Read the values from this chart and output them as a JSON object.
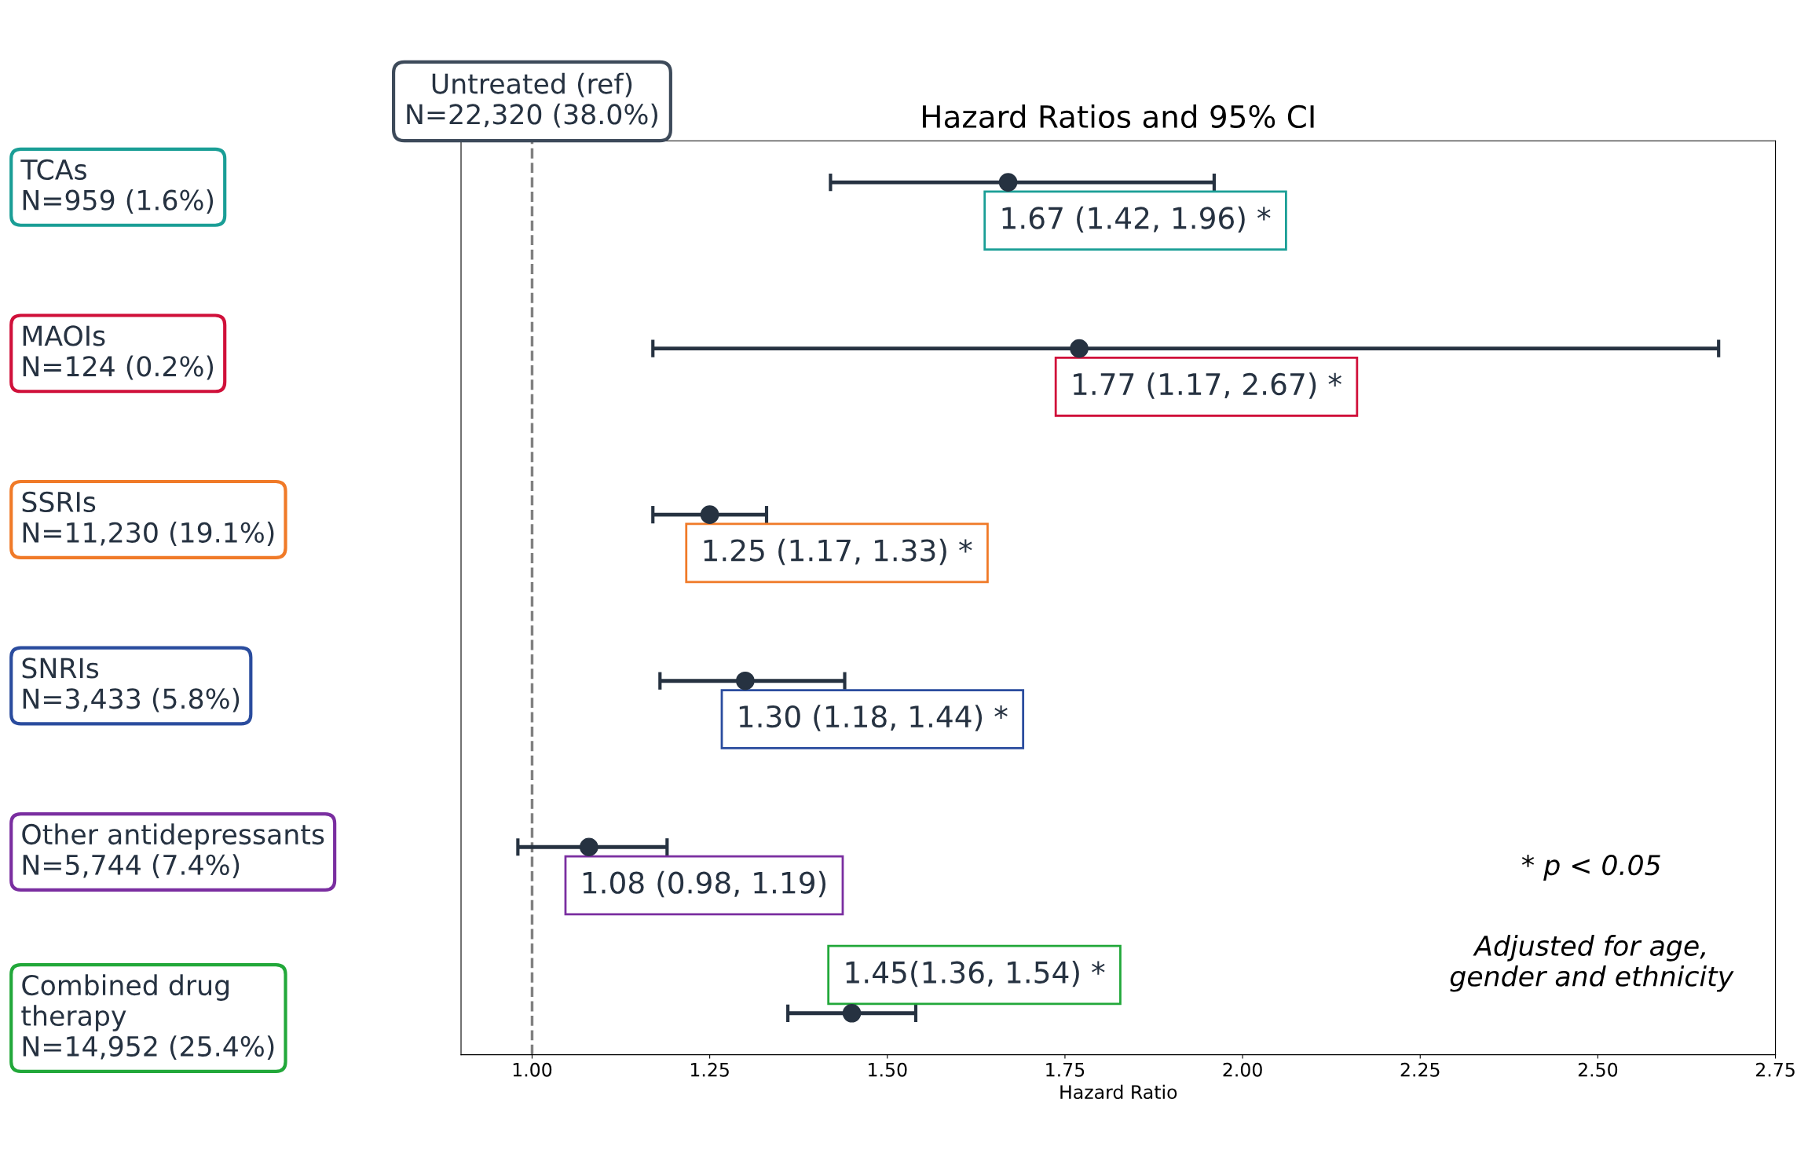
{
  "chart_data": {
    "type": "scatter",
    "orientation": "horizontal",
    "title": "Hazard Ratios and 95% CI",
    "xlabel": "Hazard Ratio",
    "categories": [
      "TCAs\nN=959 (1.6%)",
      "MAOIs\nN=124 (0.2%)",
      "SSRIs\nN=11,230 (19.1%)",
      "SNRIs\nN=3,433 (5.8%)",
      "Other antidepressants\nN=5,744 (7.4%)",
      "Combined drug\ntherapy\nN=14,952 (25.4%)"
    ],
    "series": [
      {
        "color": "#263241",
        "values": [
          1.67,
          1.77,
          1.25,
          1.3,
          1.08,
          1.45
        ],
        "errors": [
          [
            1.42,
            1.96
          ],
          [
            1.17,
            2.67
          ],
          [
            1.17,
            1.33
          ],
          [
            1.18,
            1.44
          ],
          [
            0.98,
            1.19
          ],
          [
            1.36,
            1.54
          ]
        ],
        "value_labels": [
          "1.67 (1.42, 1.96) *",
          "1.77 (1.17, 2.67) *",
          "1.25 (1.17, 1.33) *",
          "1.30 (1.18, 1.44) *",
          "1.08 (0.98, 1.19)",
          "1.45(1.36, 1.54) *"
        ]
      }
    ],
    "colors": [
      "#1a9e96",
      "#d0103a",
      "#f07a28",
      "#2a4c9e",
      "#7a2ea0",
      "#22a83a"
    ],
    "marker": "circle",
    "xlim": [
      0.9,
      2.75
    ],
    "xticks": [
      {
        "value": 1.0,
        "label": "1.00"
      },
      {
        "value": 1.25,
        "label": "1.25"
      },
      {
        "value": 1.5,
        "label": "1.50"
      },
      {
        "value": 1.75,
        "label": "1.75"
      },
      {
        "value": 2.0,
        "label": "2.00"
      },
      {
        "value": 2.25,
        "label": "2.25"
      },
      {
        "value": 2.5,
        "label": "2.50"
      },
      {
        "value": 2.75,
        "label": "2.75"
      }
    ],
    "ref_lines": [
      {
        "axis": "x",
        "value": 1.0,
        "color": "#808080",
        "line_style": "dashed"
      }
    ],
    "annotations": [
      "Untreated (ref)\nN=22,320 (38.0%)",
      "* p < 0.05",
      "Adjusted for age,\ngender and ethnicity"
    ],
    "grid": false,
    "legend": false
  }
}
